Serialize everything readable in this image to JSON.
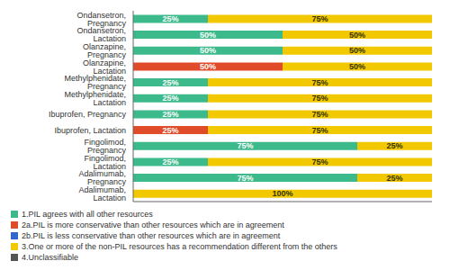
{
  "chart_data": {
    "type": "bar",
    "orientation": "horizontal",
    "stacked": true,
    "categories": [
      "Ondansetron, Pregnancy",
      "Ondansetron, Lactation",
      "Olanzapine, Pregnancy",
      "Olanzapine, Lactation",
      "Methylphenidate, Pregnancy",
      "Methylphenidate, Lactation",
      "Ibuprofen, Pregnancy",
      "Ibuprofen, Lactation",
      "Fingolimod, Pregnancy",
      "Fingolimod, Lactation",
      "Adalimumab, Pregnancy",
      "Adalimumab, Lactation"
    ],
    "series": [
      {
        "name": "1.PIL agrees with all other resources",
        "color": "#3dba8c",
        "values": [
          25,
          50,
          50,
          0,
          25,
          25,
          25,
          0,
          75,
          25,
          75,
          0
        ],
        "value_labels": [
          "25%",
          "50%",
          "50%",
          null,
          "25%",
          "25%",
          "25%",
          null,
          "75%",
          "25%",
          "75%",
          null
        ]
      },
      {
        "name": "2a.PIL is more conservative than other resources which are in agreement",
        "color": "#e04b2a",
        "values": [
          0,
          0,
          0,
          50,
          0,
          0,
          0,
          25,
          0,
          0,
          0,
          0
        ],
        "value_labels": [
          null,
          null,
          null,
          "50%",
          null,
          null,
          null,
          "25%",
          null,
          null,
          null,
          null
        ]
      },
      {
        "name": "2b.PIL is less conservative than other resources which are in agreement",
        "color": "#3366cc",
        "values": [
          0,
          0,
          0,
          0,
          0,
          0,
          0,
          0,
          0,
          0,
          0,
          0
        ],
        "value_labels": [
          null,
          null,
          null,
          null,
          null,
          null,
          null,
          null,
          null,
          null,
          null,
          null
        ]
      },
      {
        "name": "3.One or more of the non-PIL resources has a recommendation different from the others",
        "color": "#f2c800",
        "values": [
          75,
          50,
          50,
          50,
          75,
          75,
          75,
          75,
          25,
          75,
          25,
          100
        ],
        "value_labels": [
          "75%",
          "50%",
          "50%",
          "50%",
          "75%",
          "75%",
          "75%",
          "75%",
          "25%",
          "75%",
          "25%",
          "100%"
        ]
      },
      {
        "name": "4.Unclassifiable",
        "color": "#555555",
        "values": [
          0,
          0,
          0,
          0,
          0,
          0,
          0,
          0,
          0,
          0,
          0,
          0
        ],
        "value_labels": [
          null,
          null,
          null,
          null,
          null,
          null,
          null,
          null,
          null,
          null,
          null,
          null
        ]
      }
    ],
    "xlim": [
      0,
      100
    ],
    "xticks": [],
    "tick_labels": "y",
    "data_labels": true,
    "legend": "bottom"
  }
}
